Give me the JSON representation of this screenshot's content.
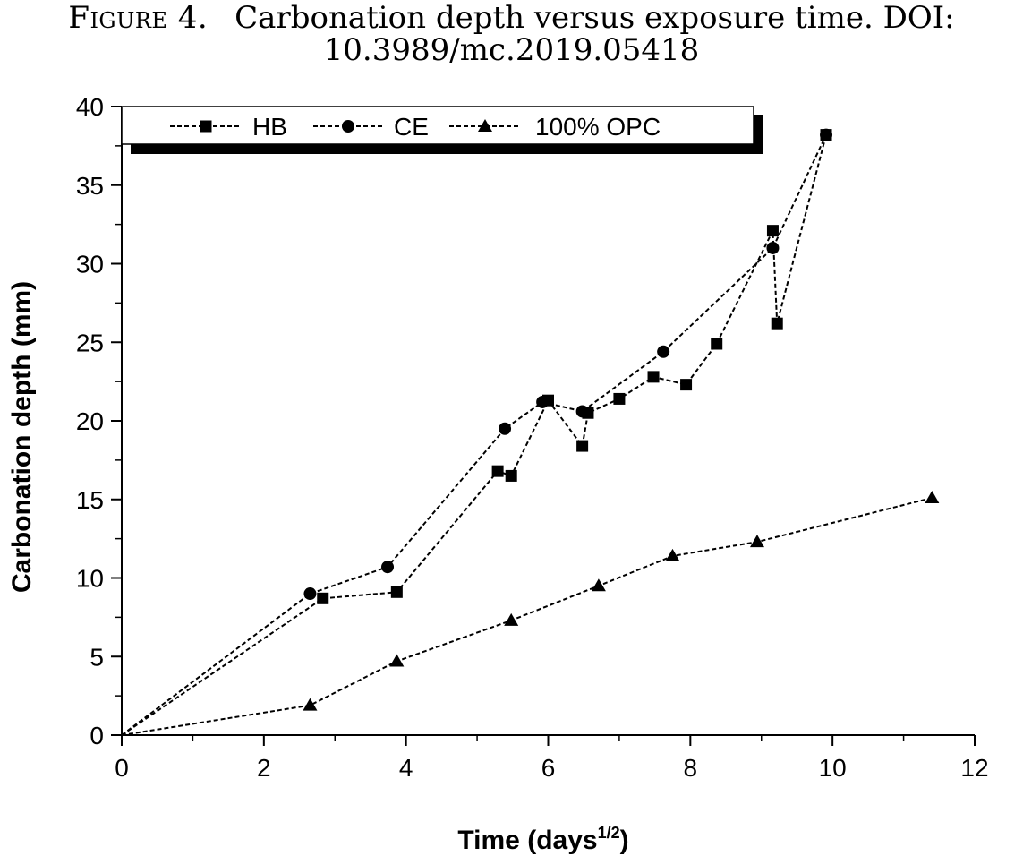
{
  "caption": {
    "label": "Figure 4.",
    "line1": "Carbonation depth versus exposure time. DOI:",
    "line2": "10.3989/mc.2019.05418"
  },
  "chart_data": {
    "type": "line",
    "xlabel": "Time (days",
    "xlabel_sup": "1/2",
    "xlabel_end": ")",
    "ylabel": "Carbonation depth (mm)",
    "xlim": [
      0,
      12
    ],
    "ylim": [
      0,
      40
    ],
    "xticks": [
      0,
      2,
      4,
      6,
      8,
      10,
      12
    ],
    "yticks": [
      0,
      5,
      10,
      15,
      20,
      25,
      30,
      35,
      40
    ],
    "grid": false,
    "legend_position": "top",
    "series": [
      {
        "name": "HB",
        "marker": "square",
        "x": [
          0,
          2.83,
          3.87,
          5.29,
          5.48,
          6.0,
          6.48,
          6.56,
          7.0,
          7.48,
          7.94,
          8.37,
          9.16,
          9.22,
          9.91
        ],
        "y": [
          0,
          8.7,
          9.1,
          16.8,
          16.5,
          21.3,
          18.4,
          20.5,
          21.4,
          22.8,
          22.3,
          24.9,
          32.1,
          26.2,
          38.2
        ]
      },
      {
        "name": "CE",
        "marker": "circle",
        "x": [
          0,
          2.65,
          3.74,
          5.39,
          5.92,
          6.48,
          7.62,
          9.16,
          9.91
        ],
        "y": [
          0,
          9.0,
          10.7,
          19.5,
          21.2,
          20.6,
          24.4,
          31.0,
          38.2
        ]
      },
      {
        "name": "100% OPC",
        "marker": "triangle",
        "x": [
          0,
          2.65,
          3.87,
          5.48,
          6.71,
          7.75,
          8.94,
          11.4
        ],
        "y": [
          0,
          1.9,
          4.7,
          7.3,
          9.5,
          11.4,
          12.3,
          15.1
        ]
      }
    ]
  }
}
